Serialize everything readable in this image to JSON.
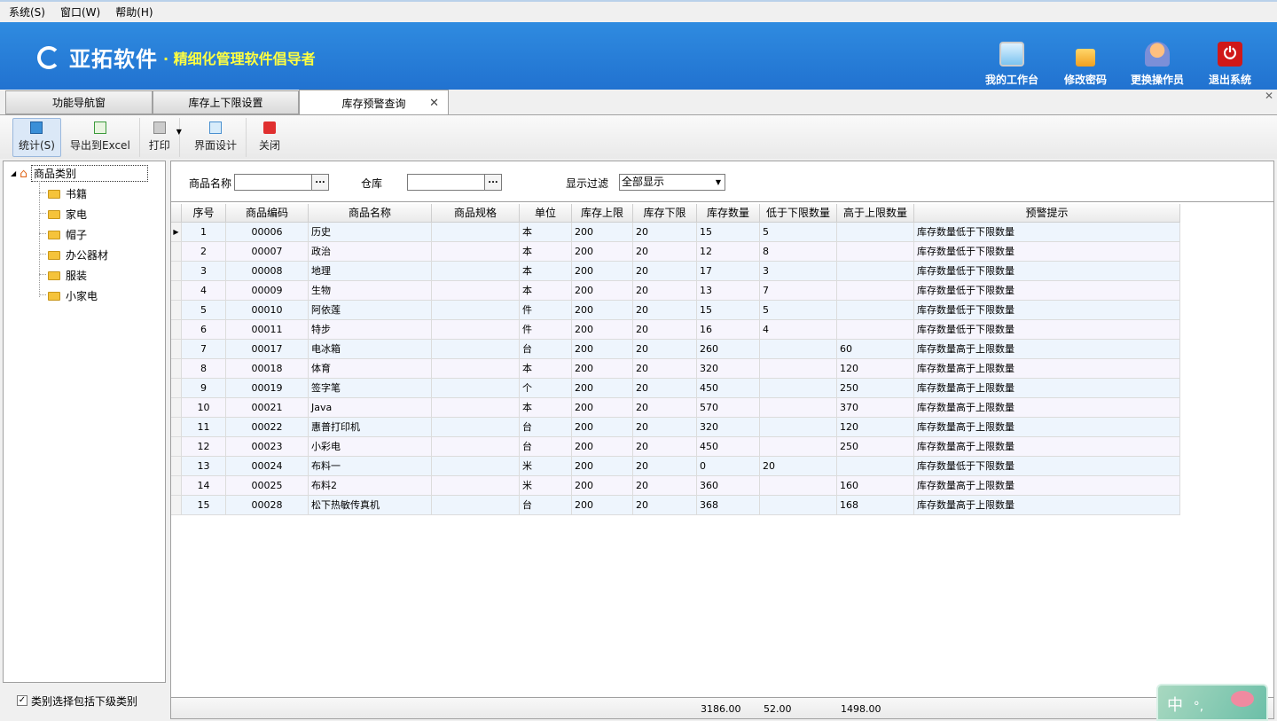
{
  "menu": [
    "系统(S)",
    "窗口(W)",
    "帮助(H)"
  ],
  "banner": {
    "brand": "亚拓软件",
    "slogan": "· 精细化管理软件倡导者",
    "buttons": [
      {
        "label": "我的工作台",
        "icon": "monitor-icon"
      },
      {
        "label": "修改密码",
        "icon": "lock-icon"
      },
      {
        "label": "更换操作员",
        "icon": "user-icon"
      },
      {
        "label": "退出系统",
        "icon": "power-icon"
      }
    ]
  },
  "tabs": [
    {
      "label": "功能导航窗",
      "active": false
    },
    {
      "label": "库存上下限设置",
      "active": false
    },
    {
      "label": "库存预警查询",
      "active": true
    }
  ],
  "toolbar": {
    "stats": "统计(S)",
    "export": "导出到Excel",
    "print": "打印",
    "design": "界面设计",
    "close": "关闭"
  },
  "tree": {
    "root": "商品类别",
    "children": [
      "书籍",
      "家电",
      "帽子",
      "办公器材",
      "服装",
      "小家电"
    ],
    "include_sub_label": "类别选择包括下级类别",
    "include_sub_checked": true
  },
  "filter": {
    "name_label": "商品名称",
    "name_value": "",
    "warehouse_label": "仓库",
    "warehouse_value": "",
    "display_label": "显示过滤",
    "display_value": "全部显示",
    "browse": "..."
  },
  "table": {
    "columns": [
      "序号",
      "商品编码",
      "商品名称",
      "商品规格",
      "单位",
      "库存上限",
      "库存下限",
      "库存数量",
      "低于下限数量",
      "高于上限数量",
      "预警提示"
    ],
    "rows": [
      [
        "1",
        "00006",
        "历史",
        "",
        "本",
        "200",
        "20",
        "15",
        "5",
        "",
        "库存数量低于下限数量"
      ],
      [
        "2",
        "00007",
        "政治",
        "",
        "本",
        "200",
        "20",
        "12",
        "8",
        "",
        "库存数量低于下限数量"
      ],
      [
        "3",
        "00008",
        "地理",
        "",
        "本",
        "200",
        "20",
        "17",
        "3",
        "",
        "库存数量低于下限数量"
      ],
      [
        "4",
        "00009",
        "生物",
        "",
        "本",
        "200",
        "20",
        "13",
        "7",
        "",
        "库存数量低于下限数量"
      ],
      [
        "5",
        "00010",
        "阿依莲",
        "",
        "件",
        "200",
        "20",
        "15",
        "5",
        "",
        "库存数量低于下限数量"
      ],
      [
        "6",
        "00011",
        "特步",
        "",
        "件",
        "200",
        "20",
        "16",
        "4",
        "",
        "库存数量低于下限数量"
      ],
      [
        "7",
        "00017",
        "电冰箱",
        "",
        "台",
        "200",
        "20",
        "260",
        "",
        "60",
        "库存数量高于上限数量"
      ],
      [
        "8",
        "00018",
        "体育",
        "",
        "本",
        "200",
        "20",
        "320",
        "",
        "120",
        "库存数量高于上限数量"
      ],
      [
        "9",
        "00019",
        "签字笔",
        "",
        "个",
        "200",
        "20",
        "450",
        "",
        "250",
        "库存数量高于上限数量"
      ],
      [
        "10",
        "00021",
        "Java",
        "",
        "本",
        "200",
        "20",
        "570",
        "",
        "370",
        "库存数量高于上限数量"
      ],
      [
        "11",
        "00022",
        "惠普打印机",
        "",
        "台",
        "200",
        "20",
        "320",
        "",
        "120",
        "库存数量高于上限数量"
      ],
      [
        "12",
        "00023",
        "小彩电",
        "",
        "台",
        "200",
        "20",
        "450",
        "",
        "250",
        "库存数量高于上限数量"
      ],
      [
        "13",
        "00024",
        "布料一",
        "",
        "米",
        "200",
        "20",
        "0",
        "20",
        "",
        "库存数量低于下限数量"
      ],
      [
        "14",
        "00025",
        "布料2",
        "",
        "米",
        "200",
        "20",
        "360",
        "",
        "160",
        "库存数量高于上限数量"
      ],
      [
        "15",
        "00028",
        "松下热敏传真机",
        "",
        "台",
        "200",
        "20",
        "368",
        "",
        "168",
        "库存数量高于上限数量"
      ]
    ],
    "totals": {
      "stock": "3186.00",
      "below": "52.00",
      "above": "1498.00"
    }
  },
  "ime": {
    "mode": "中",
    "punct": "°,"
  }
}
